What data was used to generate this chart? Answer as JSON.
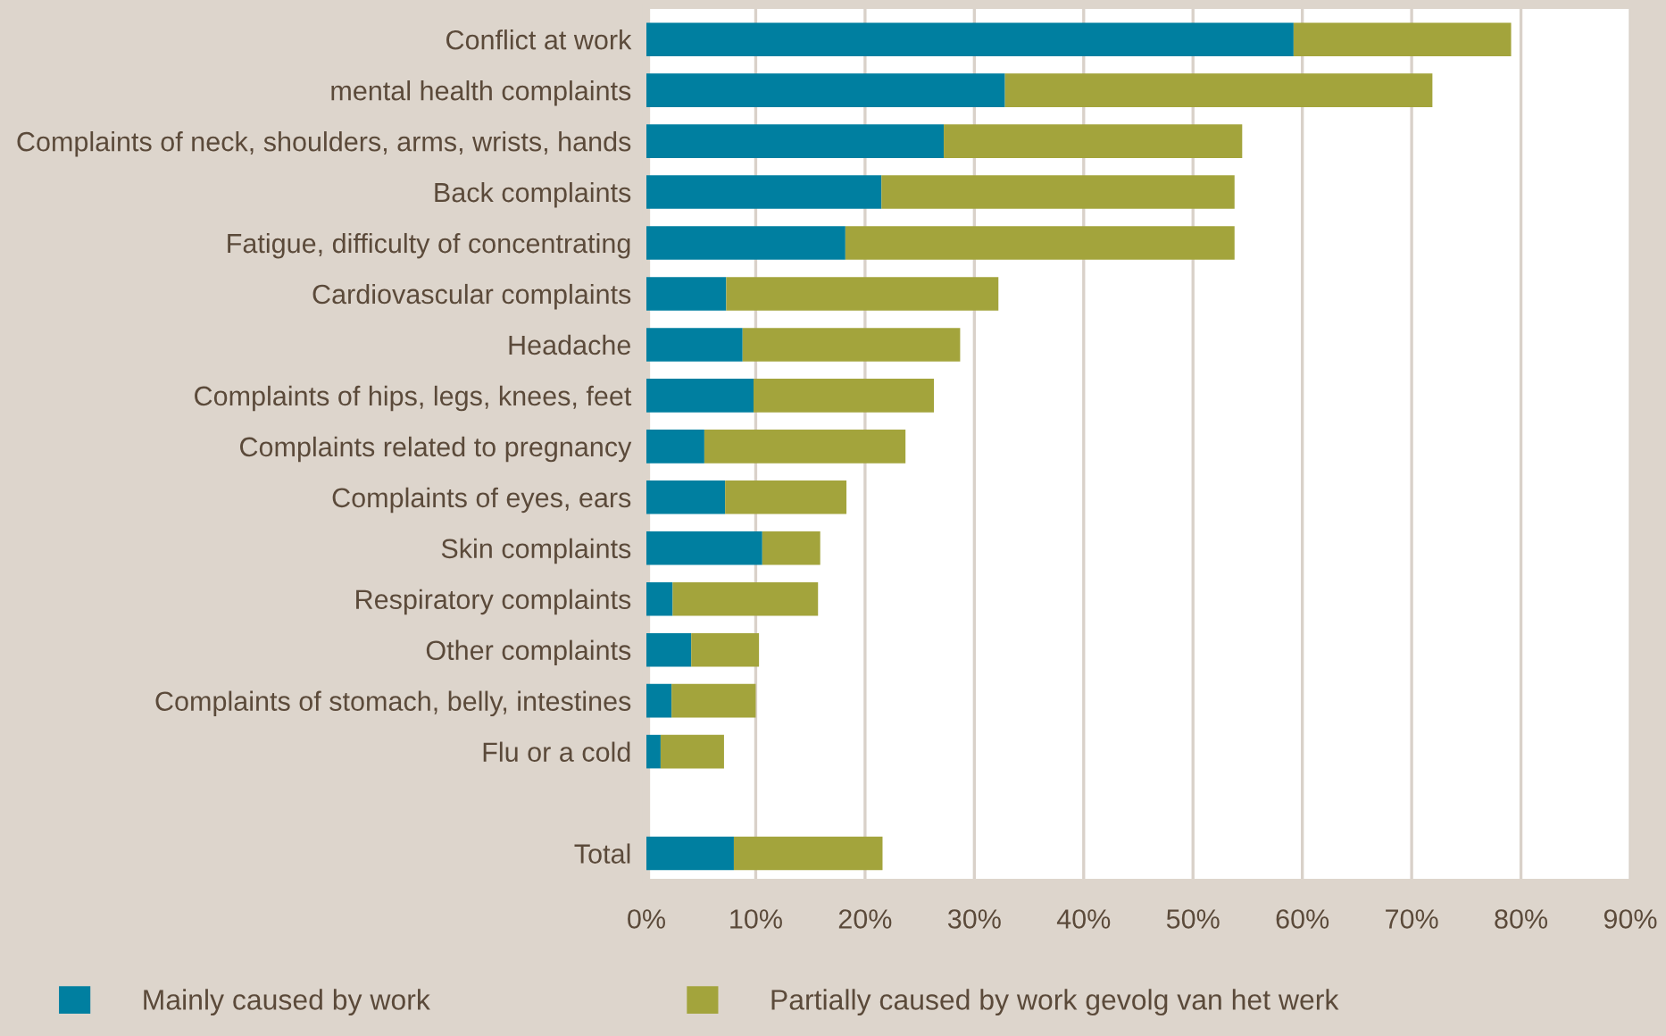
{
  "chart_data": {
    "type": "bar",
    "orientation": "horizontal",
    "stacked": true,
    "categories": [
      "Conflict at work",
      "mental health complaints",
      "Complaints of neck, shoulders, arms, wrists, hands",
      "Back complaints",
      "Fatigue, difficulty of concentrating",
      "Cardiovascular complaints",
      "Headache",
      "Complaints of hips, legs, knees, feet",
      "Complaints related to pregnancy",
      "Complaints of eyes, ears",
      "Skin complaints",
      "Respiratory complaints",
      "Other complaints",
      "Complaints of stomach, belly, intestines",
      "Flu or a cold",
      null,
      "Total"
    ],
    "series": [
      {
        "name": "Mainly caused by work",
        "color": "#007fa0",
        "values": [
          59.2,
          32.8,
          27.2,
          21.5,
          18.2,
          7.3,
          8.8,
          9.8,
          5.3,
          7.2,
          10.6,
          2.4,
          4.1,
          2.3,
          1.3,
          null,
          8.0
        ]
      },
      {
        "name": "Partially caused by work gevolg van het werk",
        "color": "#a3a43c",
        "values": [
          19.9,
          39.1,
          27.3,
          32.3,
          35.6,
          24.9,
          19.9,
          16.5,
          18.4,
          11.1,
          5.3,
          13.3,
          6.2,
          7.7,
          5.8,
          null,
          13.6
        ]
      }
    ],
    "xlim": [
      0,
      90
    ],
    "xticks": [
      {
        "value": 0,
        "label": "0%"
      },
      {
        "value": 10,
        "label": "10%"
      },
      {
        "value": 20,
        "label": "20%"
      },
      {
        "value": 30,
        "label": "30%"
      },
      {
        "value": 40,
        "label": "40%"
      },
      {
        "value": 50,
        "label": "50%"
      },
      {
        "value": 60,
        "label": "60%"
      },
      {
        "value": 70,
        "label": "70%"
      },
      {
        "value": 80,
        "label": "80%"
      },
      {
        "value": 90,
        "label": "90%"
      }
    ],
    "grid": "x",
    "legend": "bottom left"
  }
}
